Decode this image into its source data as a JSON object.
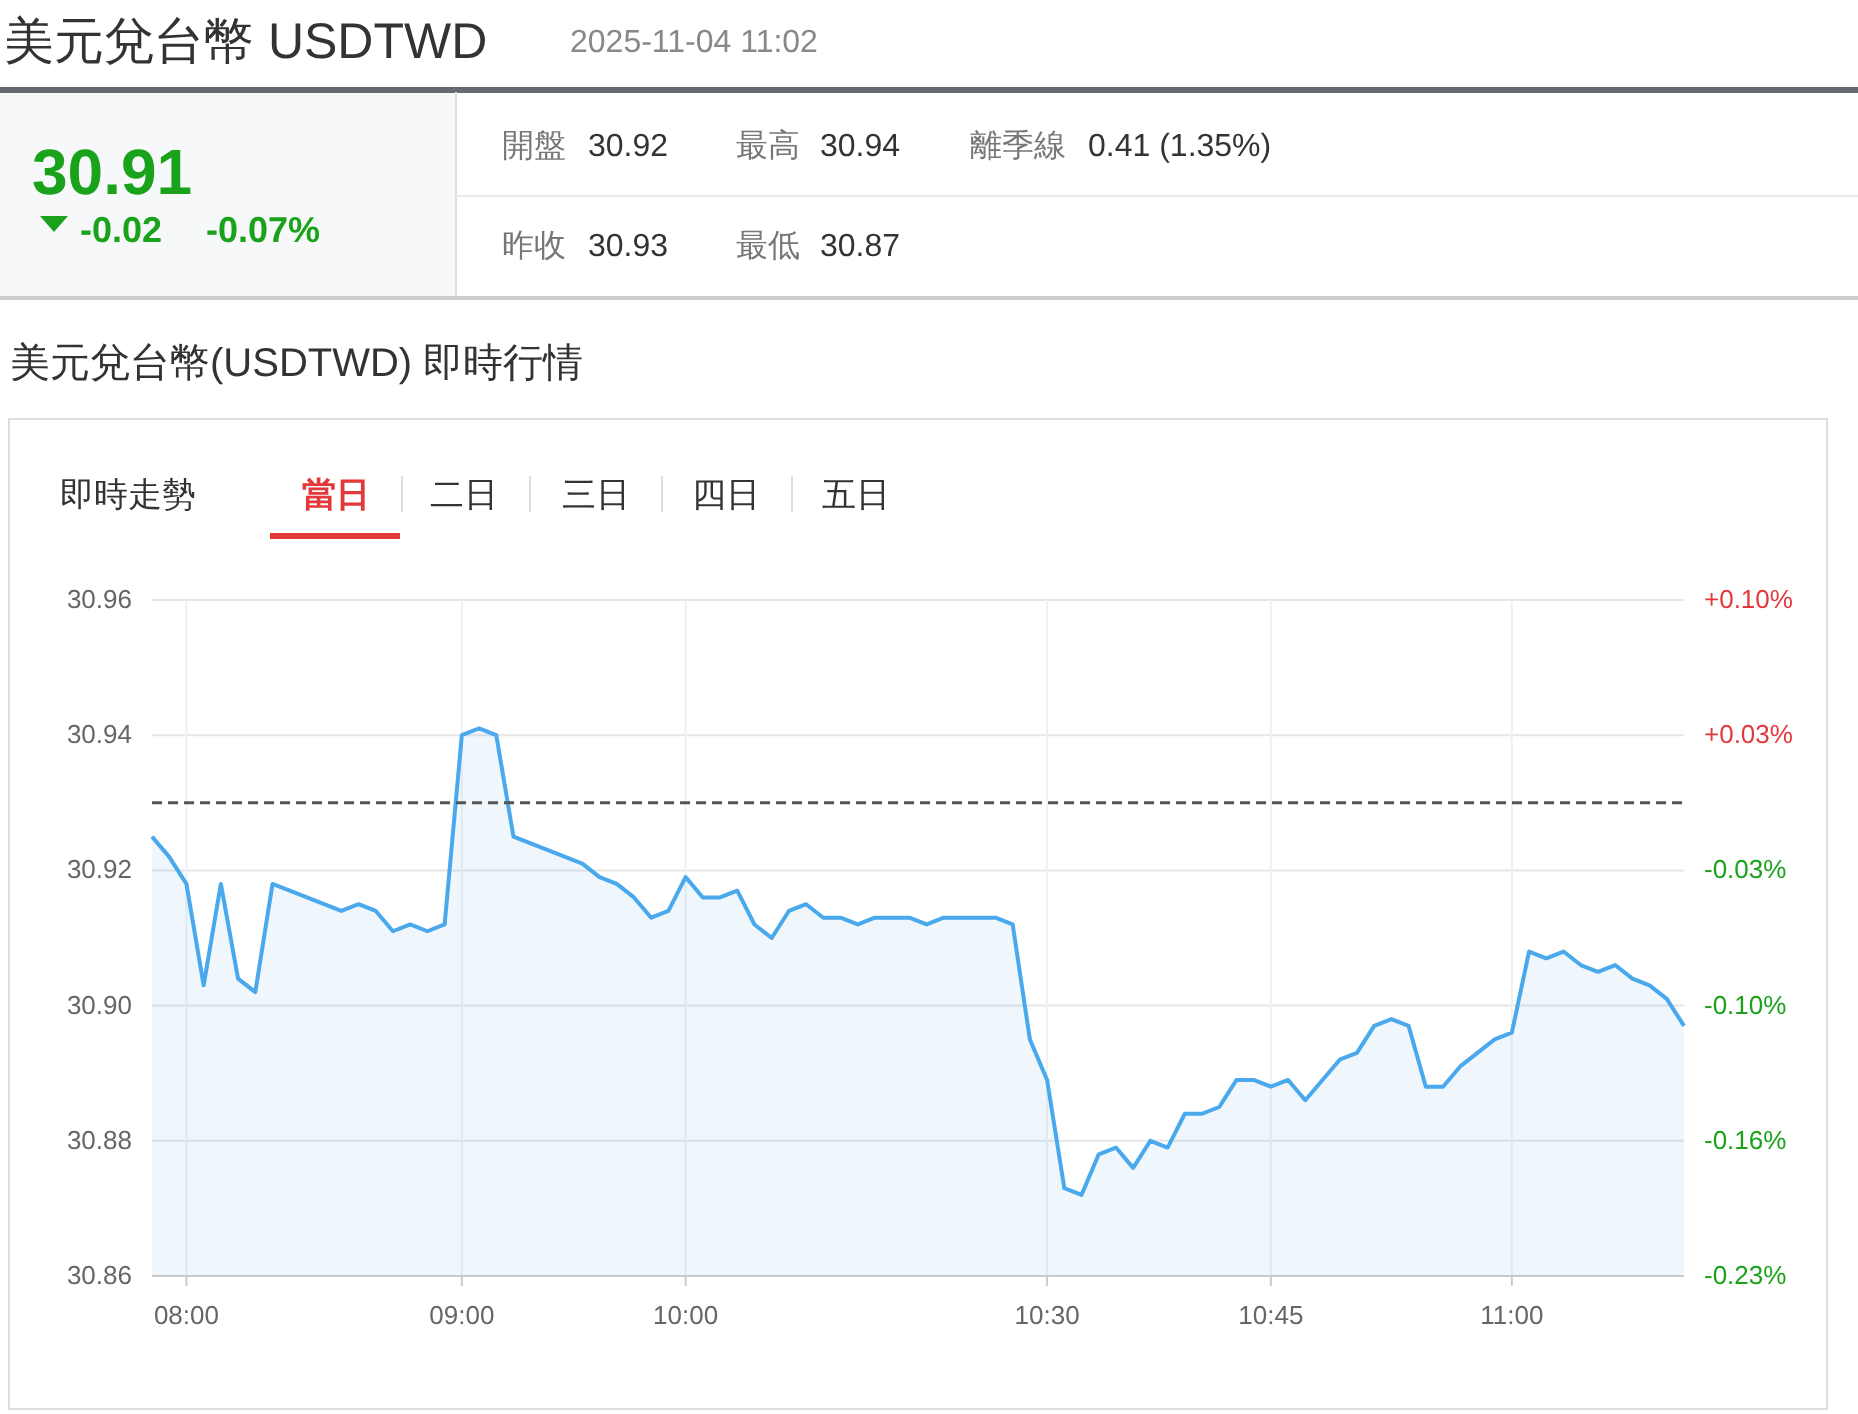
{
  "chart_data": [
    {
      "type": "other",
      "title": "美元兌台幣 USDTWD",
      "subtitle": "2025-11-04 11:02",
      "annotations": [
        "30.91",
        "-0.02",
        "-0.07%",
        "開盤",
        "30.92",
        "最高",
        "30.94",
        "離季線",
        "0.41 (1.35%)",
        "昨收",
        "30.93",
        "最低",
        "30.87"
      ]
    },
    {
      "type": "area",
      "title": "美元兌台幣(USDTWD) 即時行情",
      "annotations": [
        "即時走勢",
        "當日",
        "二日",
        "三日",
        "四日",
        "五日"
      ],
      "categories": [
        null,
        null,
        "08:00",
        null,
        null,
        null,
        null,
        null,
        null,
        null,
        null,
        null,
        null,
        null,
        null,
        null,
        null,
        null,
        "09:00",
        null,
        null,
        null,
        null,
        null,
        null,
        null,
        null,
        null,
        null,
        null,
        null,
        "10:00",
        null,
        null,
        null,
        null,
        null,
        null,
        null,
        null,
        null,
        null,
        null,
        null,
        null,
        null,
        null,
        null,
        null,
        null,
        null,
        null,
        "10:30",
        null,
        null,
        null,
        null,
        null,
        null,
        null,
        null,
        null,
        null,
        null,
        null,
        "10:45",
        null,
        null,
        null,
        null,
        null,
        null,
        null,
        null,
        null,
        null,
        null,
        null,
        null,
        "11:00",
        null,
        null,
        null,
        null,
        null,
        null,
        null,
        null,
        null,
        null
      ],
      "series": [
        {
          "color": "#4aa8ec",
          "values": [
            30.925,
            30.922,
            30.918,
            30.903,
            30.918,
            30.904,
            30.902,
            30.918,
            30.917,
            30.916,
            30.915,
            30.914,
            30.915,
            30.914,
            30.911,
            30.912,
            30.911,
            30.912,
            30.94,
            30.941,
            30.94,
            30.925,
            30.924,
            30.923,
            30.922,
            30.921,
            30.919,
            30.918,
            30.916,
            30.913,
            30.914,
            30.919,
            30.916,
            30.916,
            30.917,
            30.912,
            30.91,
            30.914,
            30.915,
            30.913,
            30.913,
            30.912,
            30.913,
            30.913,
            30.913,
            30.912,
            30.913,
            30.913,
            30.913,
            30.913,
            30.912,
            30.895,
            30.889,
            30.873,
            30.872,
            30.878,
            30.879,
            30.876,
            30.88,
            30.879,
            30.884,
            30.884,
            30.885,
            30.889,
            30.889,
            30.888,
            30.889,
            30.886,
            30.889,
            30.892,
            30.893,
            30.897,
            30.898,
            30.897,
            30.888,
            30.888,
            30.891,
            30.893,
            30.895,
            30.896,
            30.908,
            30.907,
            30.908,
            30.906,
            30.905,
            30.906,
            30.904,
            30.903,
            30.901,
            30.897
          ]
        }
      ],
      "ylim": [
        30.86,
        30.96
      ],
      "yticks": [
        {
          "value": 30.86,
          "label": "30.86"
        },
        {
          "value": 30.88,
          "label": "30.88"
        },
        {
          "value": 30.9,
          "label": "30.90"
        },
        {
          "value": 30.92,
          "label": "30.92"
        },
        {
          "value": 30.94,
          "label": "30.94"
        },
        {
          "value": 30.96,
          "label": "30.96"
        }
      ],
      "y2lim": [
        -0.2263,
        0.097
      ],
      "y2ticks": [
        {
          "value": 0.097,
          "label": "+0.10%"
        },
        {
          "value": 0.0323,
          "label": "+0.03%"
        },
        {
          "value": -0.0323,
          "label": "-0.03%"
        },
        {
          "value": -0.097,
          "label": "-0.10%"
        },
        {
          "value": -0.1617,
          "label": "-0.16%"
        },
        {
          "value": -0.2263,
          "label": "-0.23%"
        }
      ],
      "ref_lines": [
        {
          "axis": "y",
          "value": 30.93,
          "color": "#555555",
          "line_style": "dashed"
        }
      ],
      "grid": true,
      "marker": "none"
    }
  ]
}
